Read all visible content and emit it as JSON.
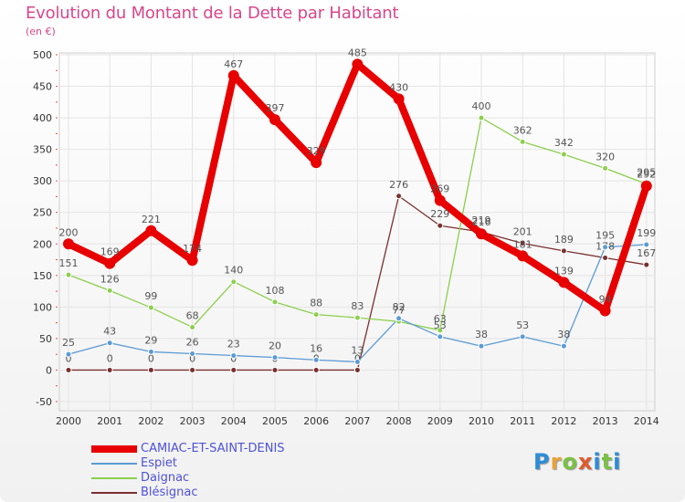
{
  "title": "Evolution du Montant de la Dette par Habitant",
  "subtitle": "(en €)",
  "logo": {
    "text": "Proxiti",
    "colors": [
      "#2d8dd6",
      "#e8a33a",
      "#7ac143",
      "#e05a2b",
      "#2d8dd6",
      "#7ac143",
      "#2d8dd6"
    ]
  },
  "chart_data": {
    "type": "line",
    "x": [
      2000,
      2001,
      2002,
      2003,
      2004,
      2005,
      2006,
      2007,
      2008,
      2009,
      2010,
      2011,
      2012,
      2013,
      2014
    ],
    "ylim": [
      -50,
      500
    ],
    "yticks": [
      -50,
      0,
      50,
      100,
      150,
      200,
      250,
      300,
      350,
      400,
      450,
      500
    ],
    "grid": true,
    "legend_position": "bottom-left",
    "series": [
      {
        "name": "CAMIAC-ET-SAINT-DENIS",
        "color": "#e80000",
        "emphasis": true,
        "values": [
          200,
          169,
          221,
          174,
          467,
          397,
          329,
          485,
          430,
          269,
          216,
          181,
          139,
          94,
          292
        ]
      },
      {
        "name": "Espiet",
        "color": "#5b9bd5",
        "emphasis": false,
        "values": [
          25,
          43,
          29,
          26,
          23,
          20,
          16,
          13,
          82,
          53,
          38,
          53,
          38,
          195,
          199
        ]
      },
      {
        "name": "Daignac",
        "color": "#8ccf4d",
        "emphasis": false,
        "values": [
          151,
          126,
          99,
          68,
          140,
          108,
          88,
          83,
          77,
          63,
          400,
          362,
          342,
          320,
          295
        ]
      },
      {
        "name": "Blésignac",
        "color": "#7b2f2f",
        "emphasis": false,
        "values": [
          0,
          0,
          0,
          0,
          0,
          0,
          0,
          0,
          276,
          229,
          219,
          201,
          189,
          178,
          167
        ]
      }
    ]
  }
}
